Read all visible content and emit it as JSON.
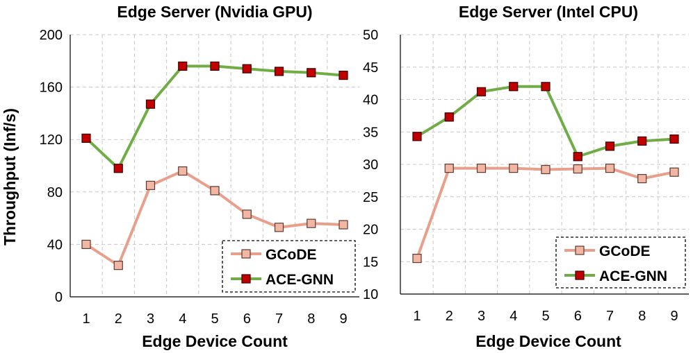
{
  "colors": {
    "gcode_line": "#e8a08c",
    "gcode_marker_fill": "#f2b6a4",
    "gcode_marker_stroke": "#5a3a30",
    "ace_line": "#70ad47",
    "ace_marker_fill": "#c00000",
    "ace_marker_stroke": "#3a0000",
    "grid": "#c8c8c8",
    "axis": "#000000"
  },
  "ylabel": "Throughput (Inf/s)",
  "chart_data": [
    {
      "type": "line",
      "title": "Edge Server (Nvidia GPU)",
      "xlabel": "Edge Device Count",
      "ylabel": "Throughput (Inf/s)",
      "categories": [
        "1",
        "2",
        "3",
        "4",
        "5",
        "6",
        "7",
        "8",
        "9"
      ],
      "ylim": [
        0,
        200
      ],
      "yticks": [
        "0",
        "40",
        "80",
        "120",
        "160",
        "200"
      ],
      "legend_position": "bottom-right",
      "series": [
        {
          "name": "GCoDE",
          "values": [
            40,
            24,
            85,
            96,
            81,
            63,
            53,
            56,
            55
          ]
        },
        {
          "name": "ACE-GNN",
          "values": [
            121,
            98,
            147,
            176,
            176,
            174,
            172,
            171,
            169
          ]
        }
      ]
    },
    {
      "type": "line",
      "title": "Edge Server (Intel CPU)",
      "xlabel": "Edge Device Count",
      "ylabel": "",
      "categories": [
        "1",
        "2",
        "3",
        "4",
        "5",
        "6",
        "7",
        "8",
        "9"
      ],
      "ylim": [
        10,
        50
      ],
      "yticks": [
        "10",
        "15",
        "20",
        "25",
        "30",
        "35",
        "40",
        "45",
        "50"
      ],
      "legend_position": "bottom-right",
      "series": [
        {
          "name": "GCoDE",
          "values": [
            15.5,
            29.4,
            29.4,
            29.4,
            29.2,
            29.3,
            29.4,
            27.8,
            28.8
          ]
        },
        {
          "name": "ACE-GNN",
          "values": [
            34.3,
            37.3,
            41.2,
            42.0,
            42.0,
            31.2,
            32.8,
            33.6,
            33.9
          ]
        }
      ]
    }
  ]
}
